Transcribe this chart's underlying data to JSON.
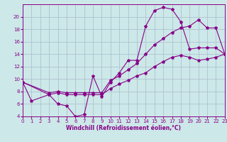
{
  "xlabel": "Windchill (Refroidissement éolien,°C)",
  "bg_color": "#cce8e8",
  "line_color": "#880088",
  "grid_color": "#aabbcc",
  "xlim": [
    0,
    23
  ],
  "ylim": [
    4,
    22
  ],
  "yticks": [
    4,
    6,
    8,
    10,
    12,
    14,
    16,
    18,
    20
  ],
  "xticks": [
    0,
    1,
    2,
    3,
    4,
    5,
    6,
    7,
    8,
    9,
    10,
    11,
    12,
    13,
    14,
    15,
    16,
    17,
    18,
    19,
    20,
    21,
    22,
    23
  ],
  "s1_x": [
    0,
    1,
    3,
    4,
    5,
    6,
    7,
    8,
    9,
    10,
    11,
    12,
    13,
    14,
    15,
    16,
    17,
    18,
    19,
    20,
    21,
    22,
    23
  ],
  "s1_y": [
    9.5,
    6.5,
    7.5,
    6.0,
    5.7,
    4.0,
    4.3,
    10.5,
    7.2,
    9.5,
    11.0,
    13.0,
    13.0,
    18.5,
    21.0,
    21.5,
    21.2,
    19.2,
    14.8,
    15.0,
    15.0,
    15.0,
    14.0
  ],
  "s2_x": [
    0,
    3,
    4,
    5,
    6,
    7,
    8,
    9,
    10,
    11,
    12,
    13,
    14,
    15,
    16,
    17,
    18,
    19,
    20,
    21,
    22,
    23
  ],
  "s2_y": [
    9.5,
    7.8,
    8.0,
    7.8,
    7.8,
    7.8,
    7.8,
    7.8,
    9.8,
    10.5,
    11.5,
    12.5,
    14.0,
    15.5,
    16.5,
    17.5,
    18.2,
    18.5,
    19.5,
    18.2,
    18.2,
    14.0
  ],
  "s3_x": [
    0,
    3,
    4,
    5,
    6,
    7,
    8,
    9,
    10,
    11,
    12,
    13,
    14,
    15,
    16,
    17,
    18,
    19,
    20,
    21,
    22,
    23
  ],
  "s3_y": [
    9.5,
    7.5,
    7.8,
    7.5,
    7.5,
    7.5,
    7.5,
    7.5,
    8.5,
    9.2,
    9.8,
    10.5,
    11.0,
    12.0,
    12.8,
    13.5,
    13.8,
    13.5,
    13.0,
    13.2,
    13.5,
    14.0
  ]
}
